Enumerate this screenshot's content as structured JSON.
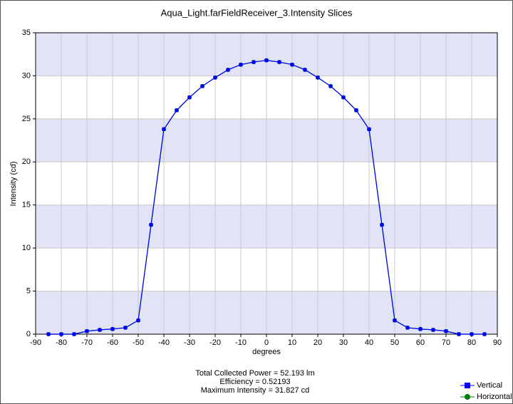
{
  "chart_data": {
    "type": "line",
    "title": "Aqua_Light.farFieldReceiver_3.Intensity Slices",
    "xlabel": "degrees",
    "ylabel": "Intensity (cd)",
    "x": [
      -85,
      -80,
      -75,
      -70,
      -65,
      -60,
      -55,
      -50,
      -45,
      -40,
      -35,
      -30,
      -25,
      -20,
      -15,
      -10,
      -5,
      0,
      5,
      10,
      15,
      20,
      25,
      30,
      35,
      40,
      45,
      50,
      55,
      60,
      65,
      70,
      75,
      80,
      85
    ],
    "series": [
      {
        "name": "Vertical",
        "color": "#0000ff",
        "marker": "square",
        "values": [
          0,
          0,
          0,
          0.35,
          0.5,
          0.6,
          0.75,
          1.6,
          12.7,
          23.8,
          26.0,
          27.5,
          28.8,
          29.8,
          30.7,
          31.3,
          31.6,
          31.8,
          31.6,
          31.3,
          30.7,
          29.8,
          28.8,
          27.5,
          26.0,
          23.8,
          12.7,
          1.6,
          0.75,
          0.6,
          0.5,
          0.35,
          0,
          0,
          0
        ]
      },
      {
        "name": "Horizontal",
        "color": "#008000",
        "marker": "circle",
        "values": [
          0,
          0,
          0,
          0.35,
          0.5,
          0.6,
          0.75,
          1.6,
          12.7,
          23.8,
          26.0,
          27.5,
          28.8,
          29.8,
          30.7,
          31.3,
          31.6,
          31.8,
          31.6,
          31.3,
          30.7,
          29.8,
          28.8,
          27.5,
          26.0,
          23.8,
          12.7,
          1.6,
          0.75,
          0.6,
          0.5,
          0.35,
          0,
          0,
          0
        ]
      }
    ],
    "xlim": [
      -90,
      90
    ],
    "xticks": [
      -90,
      -80,
      -70,
      -60,
      -50,
      -40,
      -30,
      -20,
      -10,
      0,
      10,
      20,
      30,
      40,
      50,
      60,
      70,
      80,
      90
    ],
    "ylim": [
      0,
      35
    ],
    "yticks": [
      0,
      5,
      10,
      15,
      20,
      25,
      30,
      35
    ],
    "grid": true,
    "band_color": "#e3e3f7",
    "legend": "lower right",
    "annotations": [
      "Total Collected Power = 52.193  lm",
      "Efficiency = 0.52193",
      "Maximum Intensity = 31.827  cd"
    ]
  }
}
